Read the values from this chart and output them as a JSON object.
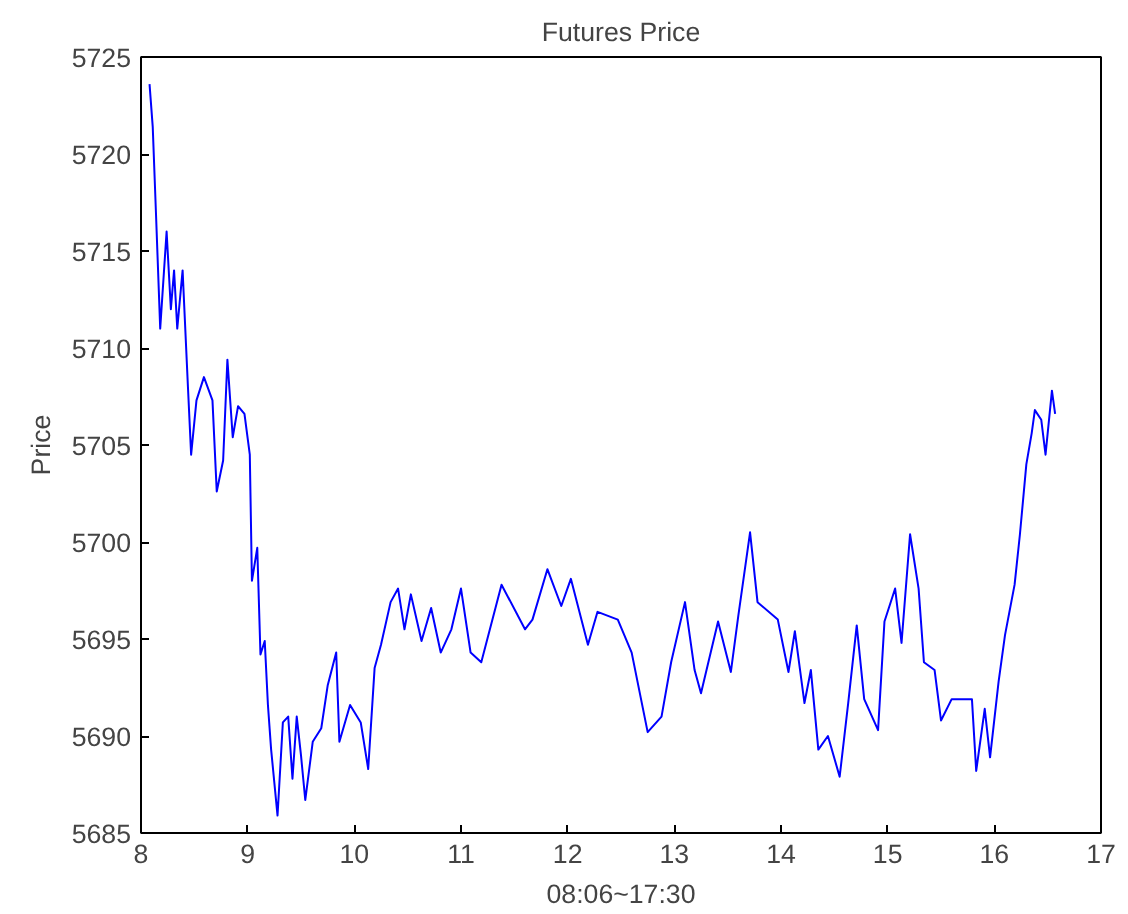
{
  "chart_data": {
    "type": "line",
    "title": "Futures Price",
    "xlabel": "08:06~17:30",
    "ylabel": "Price",
    "xlim": [
      8,
      17
    ],
    "xticks": [
      8,
      9,
      10,
      11,
      12,
      13,
      14,
      15,
      16,
      17
    ],
    "ylim": [
      5685,
      5725
    ],
    "yticks": [
      5685,
      5690,
      5695,
      5700,
      5705,
      5710,
      5715,
      5720,
      5725
    ],
    "grid": false,
    "series": [
      {
        "color": "#0000ff",
        "x": [
          8.08,
          8.11,
          8.14,
          8.18,
          8.21,
          8.24,
          8.28,
          8.31,
          8.34,
          8.39,
          8.44,
          8.47,
          8.52,
          8.59,
          8.67,
          8.71,
          8.77,
          8.81,
          8.86,
          8.91,
          8.97,
          9.02,
          9.04,
          9.09,
          9.12,
          9.16,
          9.19,
          9.22,
          9.25,
          9.28,
          9.33,
          9.38,
          9.42,
          9.46,
          9.5,
          9.54,
          9.61,
          9.69,
          9.75,
          9.83,
          9.86,
          9.96,
          10.06,
          10.13,
          10.19,
          10.25,
          10.34,
          10.41,
          10.47,
          10.53,
          10.63,
          10.72,
          10.81,
          10.91,
          11.0,
          11.09,
          11.19,
          11.38,
          11.6,
          11.67,
          11.81,
          11.94,
          12.03,
          12.19,
          12.28,
          12.47,
          12.6,
          12.75,
          12.88,
          12.97,
          13.1,
          13.19,
          13.25,
          13.41,
          13.53,
          13.6,
          13.71,
          13.78,
          13.97,
          14.07,
          14.13,
          14.22,
          14.28,
          14.35,
          14.44,
          14.55,
          14.63,
          14.71,
          14.78,
          14.91,
          14.97,
          15.07,
          15.13,
          15.21,
          15.29,
          15.34,
          15.44,
          15.5,
          15.6,
          15.72,
          15.79,
          15.83,
          15.91,
          15.96,
          16.04,
          16.1,
          16.19,
          16.24,
          16.3,
          16.35,
          16.38,
          16.44,
          16.48,
          16.54,
          16.57
        ],
        "values": [
          5723.6,
          5721.4,
          5717.0,
          5711.0,
          5713.5,
          5716.0,
          5712.0,
          5714.0,
          5711.0,
          5714.0,
          5708.0,
          5704.5,
          5707.3,
          5708.5,
          5707.3,
          5702.6,
          5704.2,
          5709.4,
          5705.4,
          5707.0,
          5706.6,
          5704.5,
          5698.0,
          5699.7,
          5694.2,
          5694.9,
          5691.6,
          5689.3,
          5687.6,
          5685.9,
          5690.7,
          5691.0,
          5687.8,
          5691.0,
          5689.0,
          5686.7,
          5689.7,
          5690.4,
          5692.6,
          5694.3,
          5689.7,
          5691.6,
          5690.7,
          5688.3,
          5693.5,
          5694.7,
          5696.9,
          5697.6,
          5695.5,
          5697.3,
          5694.9,
          5696.6,
          5694.3,
          5695.5,
          5697.6,
          5694.3,
          5693.8,
          5697.8,
          5695.5,
          5696.0,
          5698.6,
          5696.7,
          5698.1,
          5694.7,
          5696.4,
          5696.0,
          5694.3,
          5690.2,
          5691.0,
          5693.8,
          5696.9,
          5693.4,
          5692.2,
          5695.9,
          5693.3,
          5696.2,
          5700.5,
          5696.9,
          5696.0,
          5693.3,
          5695.4,
          5691.7,
          5693.4,
          5689.3,
          5690.0,
          5687.9,
          5691.7,
          5695.7,
          5691.9,
          5690.3,
          5695.9,
          5697.6,
          5694.8,
          5700.4,
          5697.6,
          5693.8,
          5693.4,
          5690.8,
          5691.9,
          5691.9,
          5691.9,
          5688.2,
          5691.4,
          5688.9,
          5692.8,
          5695.2,
          5697.8,
          5700.4,
          5704.0,
          5705.6,
          5706.8,
          5706.3,
          5704.5,
          5707.8,
          5706.6
        ]
      }
    ]
  }
}
